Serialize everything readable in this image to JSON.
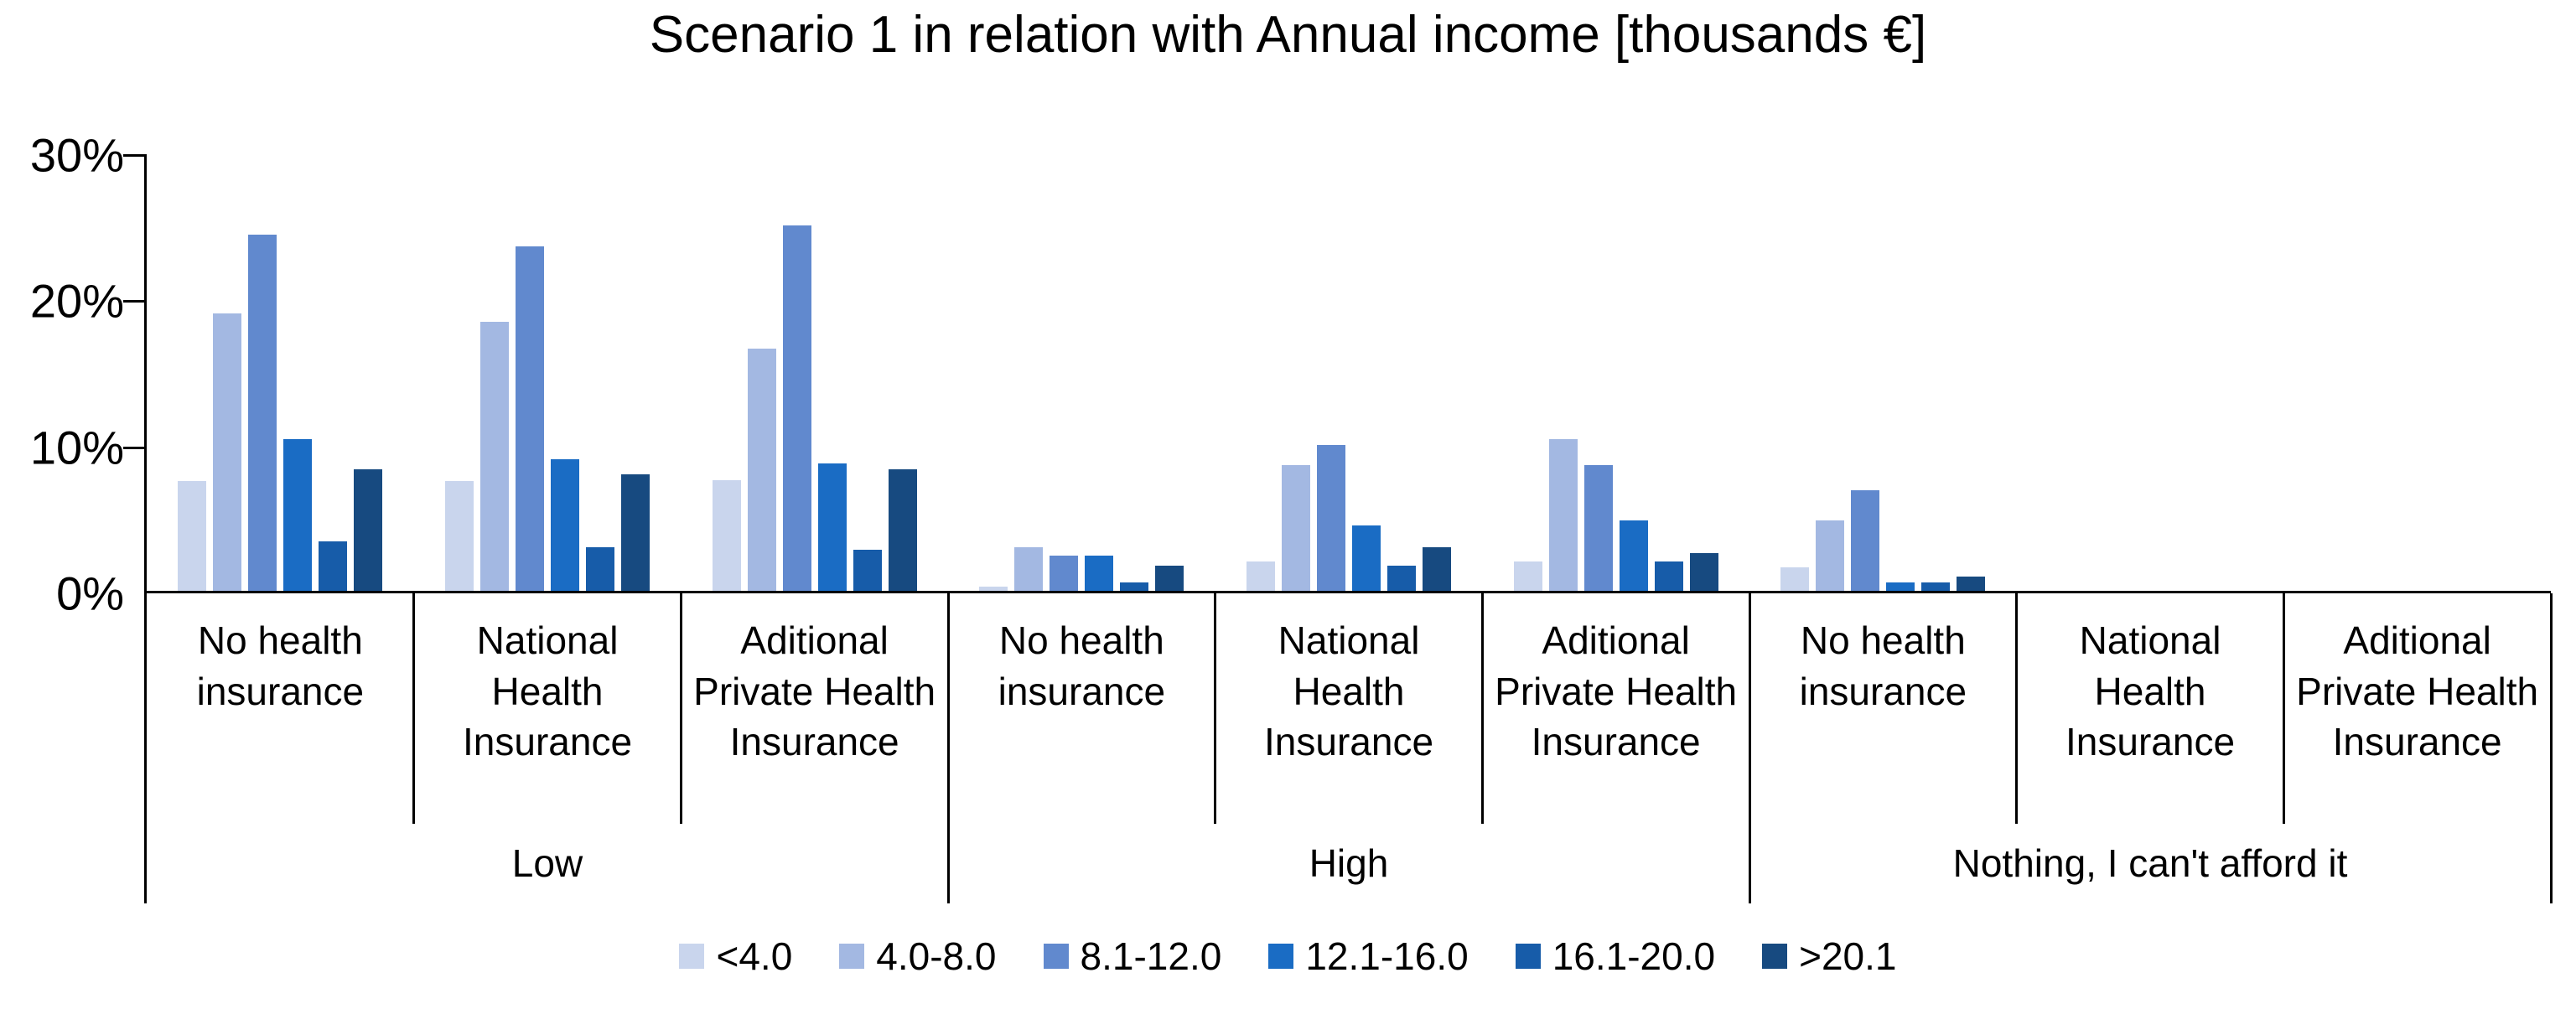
{
  "title": "Scenario 1 in relation with Annual income [thousands €]",
  "chart_data": {
    "type": "bar",
    "title": "Scenario 1 in relation with Annual income [thousands €]",
    "xlabel": "",
    "ylabel": "",
    "ylim": [
      0,
      30
    ],
    "y_tick_step": 10,
    "y_tick_labels": [
      "30%",
      "20%",
      "10%",
      "0%"
    ],
    "grid": false,
    "legend_position": "bottom",
    "group_labels": [
      "Low",
      "High",
      "Nothing, I can't afford it"
    ],
    "categories": [
      {
        "group": "Low",
        "label": "No health insurance"
      },
      {
        "group": "Low",
        "label": "National Health Insurance"
      },
      {
        "group": "Low",
        "label": "Aditional Private Health Insurance"
      },
      {
        "group": "High",
        "label": "No health insurance"
      },
      {
        "group": "High",
        "label": "National Health Insurance"
      },
      {
        "group": "High",
        "label": "Aditional Private Health Insurance"
      },
      {
        "group": "Nothing, I can't afford it",
        "label": "No health insurance"
      },
      {
        "group": "Nothing, I can't afford it",
        "label": "National Health Insurance"
      },
      {
        "group": "Nothing, I can't afford it",
        "label": "Aditional Private Health Insurance"
      }
    ],
    "series": [
      {
        "name": "<4.0",
        "color": "#c9d5ed",
        "values": [
          7.5,
          7.5,
          7.6,
          0.3,
          2.0,
          2.0,
          1.6,
          0,
          0
        ]
      },
      {
        "name": "4.0-8.0",
        "color": "#a3b8e2",
        "values": [
          19.0,
          18.4,
          16.6,
          3.0,
          8.6,
          10.4,
          4.8,
          0,
          0
        ]
      },
      {
        "name": "8.1-12.0",
        "color": "#6189ce",
        "values": [
          24.4,
          23.6,
          25.0,
          2.4,
          10.0,
          8.6,
          6.9,
          0,
          0
        ]
      },
      {
        "name": "12.1-16.0",
        "color": "#1a6cc4",
        "values": [
          10.4,
          9.0,
          8.7,
          2.4,
          4.5,
          4.8,
          0.6,
          0,
          0
        ]
      },
      {
        "name": "16.1-20.0",
        "color": "#175ca9",
        "values": [
          3.4,
          3.0,
          2.8,
          0.6,
          1.7,
          2.0,
          0.6,
          0,
          0
        ]
      },
      {
        "name": ">20.1",
        "color": "#174a80",
        "values": [
          8.3,
          8.0,
          8.3,
          1.7,
          3.0,
          2.6,
          1.0,
          0,
          0
        ]
      }
    ],
    "axis_color": "#000000"
  }
}
